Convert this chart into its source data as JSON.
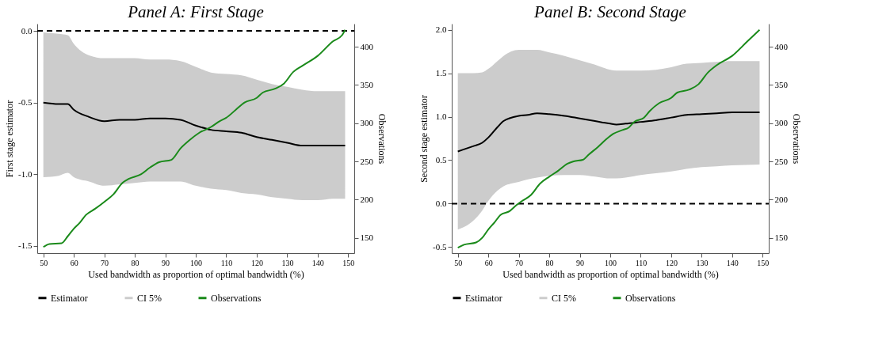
{
  "chart_data": [
    {
      "type": "line",
      "title": "Panel A: First Stage",
      "xlabel": "Used bandwidth as proportion of optimal bandwidth (%)",
      "ylabel": "First stage estimator",
      "y2label": "Observations",
      "xlim": [
        48,
        152
      ],
      "xticks": [
        50,
        60,
        70,
        80,
        90,
        100,
        110,
        120,
        130,
        140,
        150
      ],
      "ylim": [
        -1.55,
        0.05
      ],
      "yticks": [
        {
          "value": -1.5,
          "label": "-1.5"
        },
        {
          "value": -1.0,
          "label": "-1.0"
        },
        {
          "value": -0.5,
          "label": "-0.5"
        },
        {
          "value": 0,
          "label": "0.0"
        }
      ],
      "y2lim": [
        130,
        430
      ],
      "y2ticks": [
        150,
        200,
        250,
        300,
        350,
        400
      ],
      "ref_lines": [
        {
          "axis": "y",
          "value": 0,
          "color": "#000000",
          "line_style": "dashed"
        }
      ],
      "legend": "bottom",
      "grid": false,
      "series": [
        {
          "name": "Estimator",
          "color": "#000000",
          "x": [
            50,
            55,
            58,
            60,
            65,
            70,
            75,
            80,
            85,
            90,
            95,
            100,
            105,
            110,
            115,
            120,
            125,
            130,
            135,
            140,
            145,
            149
          ],
          "values": [
            -0.5,
            -0.51,
            -0.51,
            -0.55,
            -0.6,
            -0.63,
            -0.62,
            -0.62,
            -0.61,
            -0.61,
            -0.62,
            -0.66,
            -0.69,
            -0.7,
            -0.71,
            -0.74,
            -0.76,
            -0.78,
            -0.8,
            -0.8,
            -0.8,
            -0.8
          ],
          "lower": [
            -1.02,
            -1.01,
            -0.99,
            -1.02,
            -1.05,
            -1.08,
            -1.07,
            -1.06,
            -1.05,
            -1.05,
            -1.05,
            -1.08,
            -1.1,
            -1.11,
            -1.13,
            -1.14,
            -1.16,
            -1.17,
            -1.18,
            -1.18,
            -1.17,
            -1.17
          ],
          "upper": [
            -0.01,
            -0.02,
            -0.03,
            -0.09,
            -0.17,
            -0.19,
            -0.19,
            -0.19,
            -0.2,
            -0.2,
            -0.21,
            -0.25,
            -0.29,
            -0.3,
            -0.31,
            -0.34,
            -0.37,
            -0.39,
            -0.41,
            -0.42,
            -0.42,
            -0.42
          ]
        },
        {
          "name": "CI 5%",
          "type": "area",
          "color": "#cccccc"
        },
        {
          "name": "Observations",
          "axis": "y2",
          "color": "#1a8a1a",
          "x": [
            50,
            52,
            56,
            58,
            60,
            62,
            64,
            67,
            70,
            73,
            76,
            78,
            82,
            85,
            88,
            92,
            95,
            98,
            101,
            105,
            108,
            110,
            113,
            116,
            120,
            122,
            126,
            129,
            132,
            135,
            140,
            145,
            148,
            149
          ],
          "values": [
            138,
            142,
            143,
            152,
            162,
            170,
            180,
            188,
            197,
            207,
            222,
            227,
            233,
            242,
            249,
            252,
            267,
            278,
            287,
            295,
            303,
            307,
            317,
            327,
            333,
            340,
            345,
            352,
            367,
            375,
            388,
            407,
            415,
            422
          ]
        }
      ]
    },
    {
      "type": "line",
      "title": "Panel B: Second Stage",
      "xlabel": "Used bandwidth as proportion of optimal bandwidth (%)",
      "ylabel": "Second stage estimator",
      "y2label": "Observations",
      "xlim": [
        48,
        152
      ],
      "xticks": [
        50,
        60,
        70,
        80,
        90,
        100,
        110,
        120,
        130,
        140,
        150
      ],
      "ylim": [
        -0.57,
        2.07
      ],
      "yticks": [
        {
          "value": -0.5,
          "label": "-0.5"
        },
        {
          "value": 0,
          "label": "0.0"
        },
        {
          "value": 0.5,
          "label": "0.5"
        },
        {
          "value": 1.0,
          "label": "1.0"
        },
        {
          "value": 1.5,
          "label": "1.5"
        },
        {
          "value": 2.0,
          "label": "2.0"
        }
      ],
      "y2lim": [
        130,
        430
      ],
      "y2ticks": [
        150,
        200,
        250,
        300,
        350,
        400
      ],
      "ref_lines": [
        {
          "axis": "y",
          "value": 0,
          "color": "#000000",
          "line_style": "dashed"
        }
      ],
      "legend": "bottom",
      "grid": false,
      "series": [
        {
          "name": "Estimator",
          "color": "#000000",
          "x": [
            50,
            55,
            58,
            60,
            63,
            65,
            70,
            73,
            76,
            80,
            85,
            90,
            95,
            100,
            102,
            105,
            110,
            115,
            120,
            125,
            130,
            135,
            140,
            149
          ],
          "values": [
            0.6,
            0.66,
            0.7,
            0.76,
            0.88,
            0.95,
            1.01,
            1.02,
            1.04,
            1.03,
            1.01,
            0.98,
            0.95,
            0.92,
            0.91,
            0.92,
            0.94,
            0.96,
            0.99,
            1.02,
            1.03,
            1.04,
            1.05,
            1.05
          ],
          "lower": [
            -0.3,
            -0.2,
            -0.08,
            0.03,
            0.15,
            0.2,
            0.25,
            0.28,
            0.3,
            0.32,
            0.33,
            0.33,
            0.31,
            0.29,
            0.29,
            0.3,
            0.33,
            0.35,
            0.37,
            0.4,
            0.42,
            0.43,
            0.44,
            0.45
          ],
          "upper": [
            1.5,
            1.5,
            1.51,
            1.55,
            1.64,
            1.7,
            1.77,
            1.77,
            1.77,
            1.74,
            1.7,
            1.65,
            1.6,
            1.54,
            1.53,
            1.53,
            1.53,
            1.54,
            1.57,
            1.61,
            1.62,
            1.63,
            1.64,
            1.64
          ]
        },
        {
          "name": "CI 5%",
          "type": "area",
          "color": "#cccccc"
        },
        {
          "name": "Observations",
          "axis": "y2",
          "color": "#1a8a1a",
          "x": [
            50,
            52,
            56,
            58,
            60,
            62,
            64,
            67,
            69,
            71,
            74,
            77,
            80,
            83,
            86,
            88,
            91,
            93,
            96,
            99,
            101,
            104,
            106,
            108,
            111,
            113,
            116,
            120,
            122,
            126,
            129,
            132,
            135,
            140,
            145,
            149
          ],
          "values": [
            137,
            141,
            144,
            150,
            161,
            170,
            180,
            185,
            192,
            198,
            206,
            221,
            230,
            238,
            247,
            250,
            252,
            259,
            269,
            280,
            286,
            291,
            294,
            302,
            307,
            316,
            326,
            333,
            340,
            344,
            351,
            366,
            376,
            388,
            407,
            422
          ]
        }
      ]
    }
  ]
}
